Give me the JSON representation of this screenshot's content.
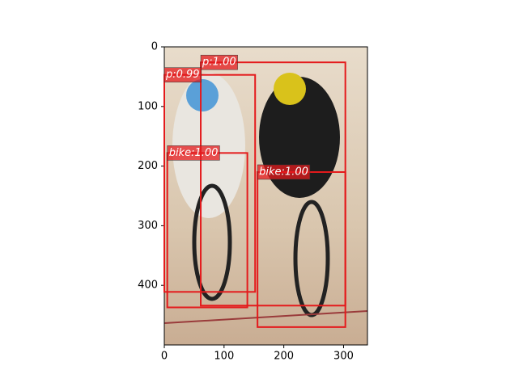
{
  "chart_data": {
    "type": "image-detections",
    "xlim": [
      0,
      340
    ],
    "ylim": [
      500,
      0
    ],
    "xticks": [
      0,
      100,
      200,
      300
    ],
    "yticks": [
      0,
      100,
      200,
      300,
      400
    ],
    "box_color": "#e41a1c",
    "boxes": [
      {
        "label": "p:1.00",
        "x": [
          61,
          303
        ],
        "y": [
          26,
          434
        ]
      },
      {
        "label": "p:0.99",
        "x": [
          0,
          152
        ],
        "y": [
          47,
          411
        ]
      },
      {
        "label": "bike:1.00",
        "x": [
          5,
          139
        ],
        "y": [
          178,
          437
        ]
      },
      {
        "label": "bike:1.00",
        "x": [
          156,
          303
        ],
        "y": [
          210,
          470
        ]
      }
    ]
  }
}
